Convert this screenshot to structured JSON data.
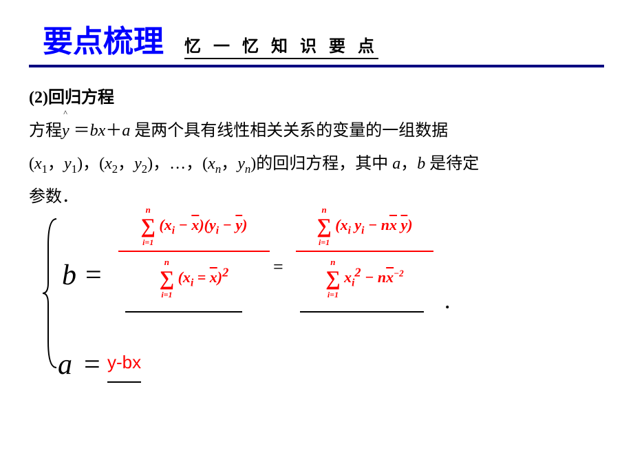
{
  "header": {
    "title": "要点梳理",
    "subtitle": "忆 一 忆 知 识 要 点"
  },
  "body": {
    "section_label": "(2)回归方程",
    "line1_pre": "方程",
    "line1_yhat": "y",
    "line1_mid": " ＝",
    "line1_bx": "bx",
    "line1_plus": "＋",
    "line1_a": "a",
    "line1_post": " 是两个具有线性相关关系的变量的一组数据",
    "line2_pre": "(",
    "x1": "x",
    "s1": "1",
    "comma": "，",
    "y1": "y",
    "line2_mid1": ")，(",
    "x2": "x",
    "s2": "2",
    "y2": "y",
    "line2_mid2": ")，…，(",
    "xn": "x",
    "sn": "n",
    "yn": "y",
    "line2_post": ")的回归方程，其中 ",
    "a_var": "a",
    "b_var": "b",
    "line2_end": " 是待定",
    "line3": "参数．"
  },
  "formula": {
    "b_label": "b",
    "eq": "=",
    "a_label": "a",
    "a_value": "y-bx",
    "mid_equals": "=",
    "period": "．",
    "sigma_top": "n",
    "sigma_bot": "i=1",
    "frac1_num": "(x<sub>i</sub> − <span class=\"bar\">x</span>)(y<sub>i</sub> − <span class=\"bar\">y</span>)",
    "frac1_den": "(x<sub>i</sub> = <span class=\"bar\">x</span>)<sup>2</sup>",
    "frac2_num": "(x<sub>i</sub> y<sub>i</sub> − n<span class=\"bar\">x</span> <span class=\"bar\">y</span>)",
    "frac2_den": "x<sub>i</sub><sup>2</sup> − n<span class=\"bar\">x</span><sup style=\"font-size:0.6em\">−2</sup>"
  },
  "colors": {
    "title": "#0000ff",
    "rule": "#000080",
    "formula": "#ff0000",
    "text": "#000000",
    "bg": "#ffffff"
  }
}
